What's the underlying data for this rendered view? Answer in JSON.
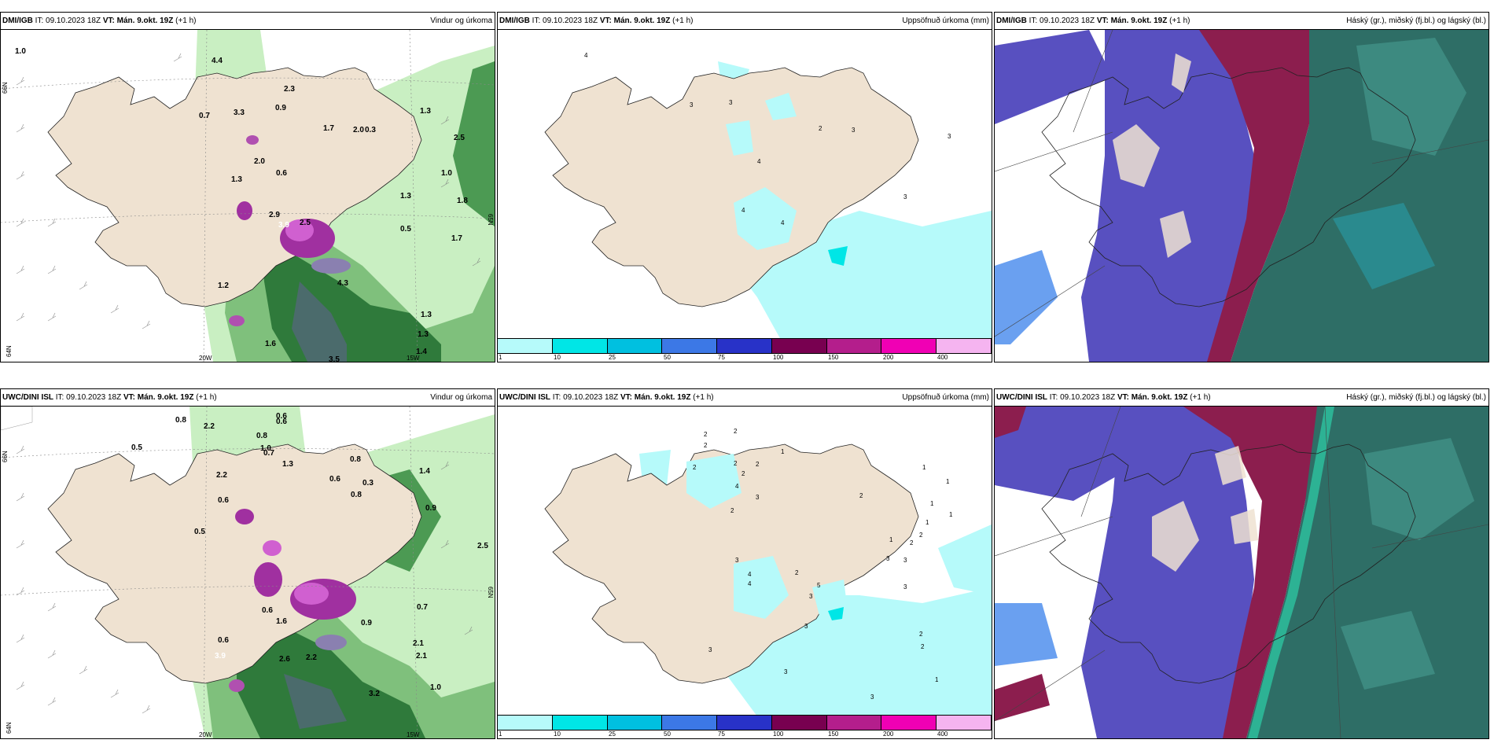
{
  "panels": [
    {
      "source": "DMI/IGB",
      "it_label": "IT:",
      "it_value": "09.10.2023 18Z",
      "vt_label": "VT:",
      "vt_value": "Mán. 9.okt. 19Z",
      "lead": "(+1 h)",
      "title": "Vindur og úrkoma"
    },
    {
      "source": "DMI/IGB",
      "it_label": "IT:",
      "it_value": "09.10.2023 18Z",
      "vt_label": "VT:",
      "vt_value": "Mán. 9.okt. 19Z",
      "lead": "(+1 h)",
      "title": "Uppsöfnuð úrkoma (mm)"
    },
    {
      "source": "DMI/IGB",
      "it_label": "IT:",
      "it_value": "09.10.2023 18Z",
      "vt_label": "VT:",
      "vt_value": "Mán. 9.okt. 19Z",
      "lead": "(+1 h)",
      "title": "Háský (gr.), miðský (fj.bl.) og lágský (bl.)"
    },
    {
      "source": "UWC/DINI ISL",
      "it_label": "IT:",
      "it_value": "09.10.2023 18Z",
      "vt_label": "VT:",
      "vt_value": "Mán. 9.okt. 19Z",
      "lead": "(+1 h)",
      "title": "Vindur og úrkoma"
    },
    {
      "source": "UWC/DINI ISL",
      "it_label": "IT:",
      "it_value": "09.10.2023 18Z",
      "vt_label": "VT:",
      "vt_value": "Mán. 9.okt. 19Z",
      "lead": "(+1 h)",
      "title": "Uppsöfnuð úrkoma (mm)"
    },
    {
      "source": "UWC/DINI ISL",
      "it_label": "IT:",
      "it_value": "09.10.2023 18Z",
      "vt_label": "VT:",
      "vt_value": "Mán. 9.okt. 19Z",
      "lead": "(+1 h)",
      "title": "Háský (gr.), miðský (fj.bl.) og lágský (bl.)"
    }
  ],
  "axis_labels": {
    "lon_20w": "20W",
    "lon_15w": "15W",
    "lat_66n": "66N",
    "lat_64n": "64N",
    "lat_65n": "65N"
  },
  "colorbar": {
    "ticks": [
      "1",
      "10",
      "25",
      "50",
      "75",
      "100",
      "150",
      "200",
      "400"
    ],
    "colors": [
      "#b6fafa",
      "#00e6e6",
      "#00c0e0",
      "#3c78e6",
      "#2832c8",
      "#780050",
      "#b41e8c",
      "#f000b4",
      "#f5b4f0"
    ]
  },
  "wind_values_top": [
    "1.0",
    "4.4",
    "0.7",
    "3.3",
    "2.3",
    "0.9",
    "1.7",
    "2.0",
    "0.3",
    "2.5",
    "1.3",
    "2.0",
    "0.6",
    "1.0",
    "1.3",
    "2.9",
    "3.9",
    "2.5",
    "1.3",
    "1.8",
    "0.5",
    "1.7",
    "4.3",
    "1.2",
    "1.3",
    "1.4",
    "1.6",
    "3.5",
    "1.3"
  ],
  "wind_values_bottom": [
    "0.8",
    "0.6",
    "2.2",
    "0.5",
    "0.8",
    "0.7",
    "0.6",
    "1.4",
    "2.2",
    "0.8",
    "0.6",
    "1.0",
    "0.5",
    "0.6",
    "1.3",
    "0.3",
    "0.8",
    "0.9",
    "2.5",
    "1.6",
    "0.6",
    "2.1",
    "2.1",
    "2.6",
    "2.2",
    "3.2",
    "1.0",
    "0.7",
    "3.9",
    "0.6",
    "0.9"
  ],
  "precip_values_top": [
    "4",
    "3",
    "3",
    "2",
    "3",
    "3",
    "4",
    "3",
    "4",
    "4"
  ],
  "precip_values_bottom": [
    "2",
    "2",
    "2",
    "1",
    "2",
    "2",
    "2",
    "4",
    "2",
    "3",
    "2",
    "2",
    "1",
    "1",
    "1",
    "3",
    "4",
    "4",
    "5",
    "2",
    "3",
    "3",
    "3",
    "2",
    "2",
    "3",
    "1",
    "1",
    "1",
    "3",
    "3",
    "2",
    "2",
    "3",
    "3",
    "1"
  ]
}
